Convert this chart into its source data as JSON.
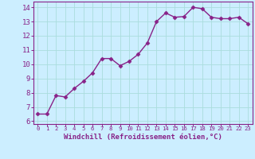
{
  "x": [
    0,
    1,
    2,
    3,
    4,
    5,
    6,
    7,
    8,
    9,
    10,
    11,
    12,
    13,
    14,
    15,
    16,
    17,
    18,
    19,
    20,
    21,
    22,
    23
  ],
  "y": [
    6.5,
    6.5,
    7.8,
    7.7,
    8.3,
    8.8,
    9.4,
    10.4,
    10.4,
    9.9,
    10.2,
    10.7,
    11.5,
    13.0,
    13.6,
    13.3,
    13.35,
    14.0,
    13.9,
    13.3,
    13.2,
    13.2,
    13.3,
    12.85
  ],
  "line_color": "#882288",
  "marker": "D",
  "marker_size": 2.5,
  "bg_color": "#cceeff",
  "grid_color": "#aadddd",
  "xlabel": "Windchill (Refroidissement éolien,°C)",
  "xlabel_color": "#882288",
  "tick_color": "#882288",
  "spine_color": "#882288",
  "ylim": [
    5.8,
    14.4
  ],
  "xlim": [
    -0.5,
    23.5
  ],
  "yticks": [
    6,
    7,
    8,
    9,
    10,
    11,
    12,
    13,
    14
  ],
  "xticks": [
    0,
    1,
    2,
    3,
    4,
    5,
    6,
    7,
    8,
    9,
    10,
    11,
    12,
    13,
    14,
    15,
    16,
    17,
    18,
    19,
    20,
    21,
    22,
    23
  ],
  "ytick_fontsize": 6.5,
  "xtick_fontsize": 5.2,
  "xlabel_fontsize": 6.5,
  "linewidth": 1.0
}
